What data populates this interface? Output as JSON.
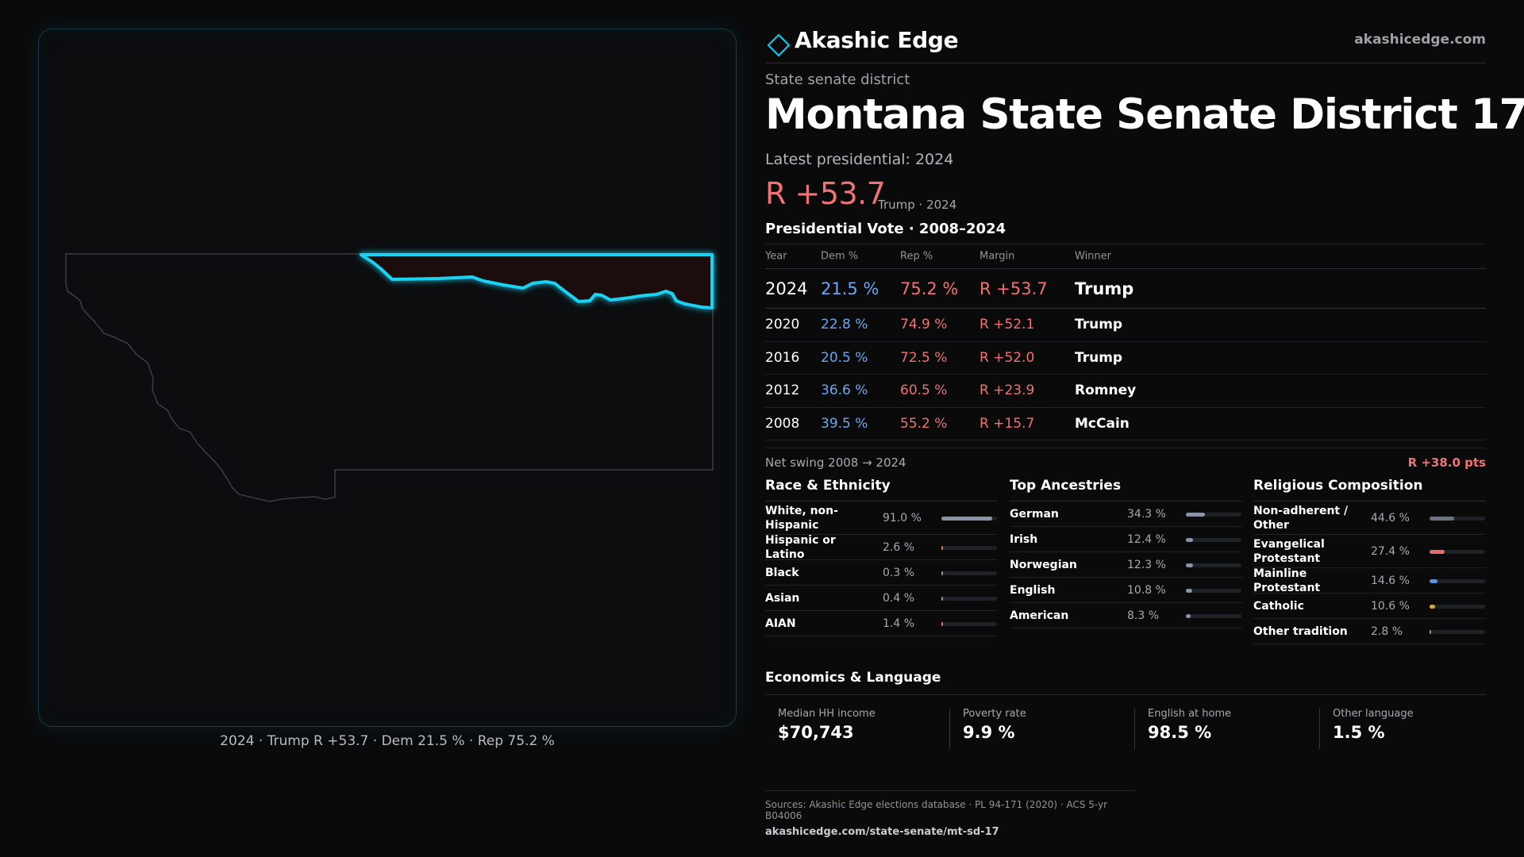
{
  "brand": {
    "name": "Akashic Edge",
    "url": "akashicedge.com"
  },
  "header": {
    "kicker": "State senate district",
    "title": "Montana State Senate District 17",
    "latest_label": "Latest presidential: 2024",
    "margin": "R +53.7",
    "margin_sub": "Trump · 2024"
  },
  "map": {
    "caption": "2024 · Trump R +53.7 · Dem 21.5 % · Rep 75.2 %"
  },
  "presidential": {
    "title": "Presidential Vote · 2008–2024",
    "columns": [
      "Year",
      "Dem %",
      "Rep %",
      "Margin",
      "Winner"
    ],
    "rows": [
      {
        "year": "2024",
        "dem": "21.5 %",
        "rep": "75.2 %",
        "margin": "R +53.7",
        "winner": "Trump"
      },
      {
        "year": "2020",
        "dem": "22.8 %",
        "rep": "74.9 %",
        "margin": "R +52.1",
        "winner": "Trump"
      },
      {
        "year": "2016",
        "dem": "20.5 %",
        "rep": "72.5 %",
        "margin": "R +52.0",
        "winner": "Trump"
      },
      {
        "year": "2012",
        "dem": "36.6 %",
        "rep": "60.5 %",
        "margin": "R +23.9",
        "winner": "Romney"
      },
      {
        "year": "2008",
        "dem": "39.5 %",
        "rep": "55.2 %",
        "margin": "R +15.7",
        "winner": "McCain"
      }
    ],
    "swing_label": "Net swing 2008 → 2024",
    "swing_value": "R +38.0 pts"
  },
  "race": {
    "title": "Race & Ethnicity",
    "items": [
      {
        "label": "White, non-Hispanic",
        "value": "91.0 %",
        "pct": 91.0,
        "color": "#8a93a4"
      },
      {
        "label": "Hispanic or Latino",
        "value": "2.6 %",
        "pct": 2.6,
        "color": "#e07a3a"
      },
      {
        "label": "Black",
        "value": "0.3 %",
        "pct": 0.3,
        "color": "#8a93a4"
      },
      {
        "label": "Asian",
        "value": "0.4 %",
        "pct": 0.4,
        "color": "#8a93a4"
      },
      {
        "label": "AIAN",
        "value": "1.4 %",
        "pct": 1.4,
        "color": "#e07a3a"
      }
    ]
  },
  "ancestry": {
    "title": "Top Ancestries",
    "items": [
      {
        "label": "German",
        "value": "34.3 %",
        "pct": 34.3,
        "color": "#8a93a4"
      },
      {
        "label": "Irish",
        "value": "12.4 %",
        "pct": 12.4,
        "color": "#8a93a4"
      },
      {
        "label": "Norwegian",
        "value": "12.3 %",
        "pct": 12.3,
        "color": "#8a93a4"
      },
      {
        "label": "English",
        "value": "10.8 %",
        "pct": 10.8,
        "color": "#8a93a4"
      },
      {
        "label": "American",
        "value": "8.3 %",
        "pct": 8.3,
        "color": "#8a93a4"
      }
    ]
  },
  "religion": {
    "title": "Religious Composition",
    "items": [
      {
        "label": "Non-adherent / Other",
        "value": "44.6 %",
        "pct": 44.6,
        "color": "#6b7280"
      },
      {
        "label": "Evangelical Protestant",
        "value": "27.4 %",
        "pct": 27.4,
        "color": "#e86a6a"
      },
      {
        "label": "Mainline Protestant",
        "value": "14.6 %",
        "pct": 14.6,
        "color": "#5b8fe0"
      },
      {
        "label": "Catholic",
        "value": "10.6 %",
        "pct": 10.6,
        "color": "#d9a53a"
      },
      {
        "label": "Other tradition",
        "value": "2.8 %",
        "pct": 2.8,
        "color": "#8a93a4"
      }
    ]
  },
  "economics": {
    "title": "Economics & Language",
    "items": [
      {
        "label": "Median HH income",
        "value": "$70,743"
      },
      {
        "label": "Poverty rate",
        "value": "9.9 %"
      },
      {
        "label": "English at home",
        "value": "98.5 %"
      },
      {
        "label": "Other language",
        "value": "1.5 %"
      }
    ]
  },
  "footer": {
    "sources": "Sources: Akashic Edge elections database · PL 94-171 (2020) · ACS 5-yr B04006",
    "url": "akashicedge.com/state-senate/mt-sd-17"
  },
  "colors": {
    "accent": "#16c4e8",
    "dem": "#6aa8f2",
    "rep": "#f07272",
    "bg": "#0a0a0b"
  }
}
